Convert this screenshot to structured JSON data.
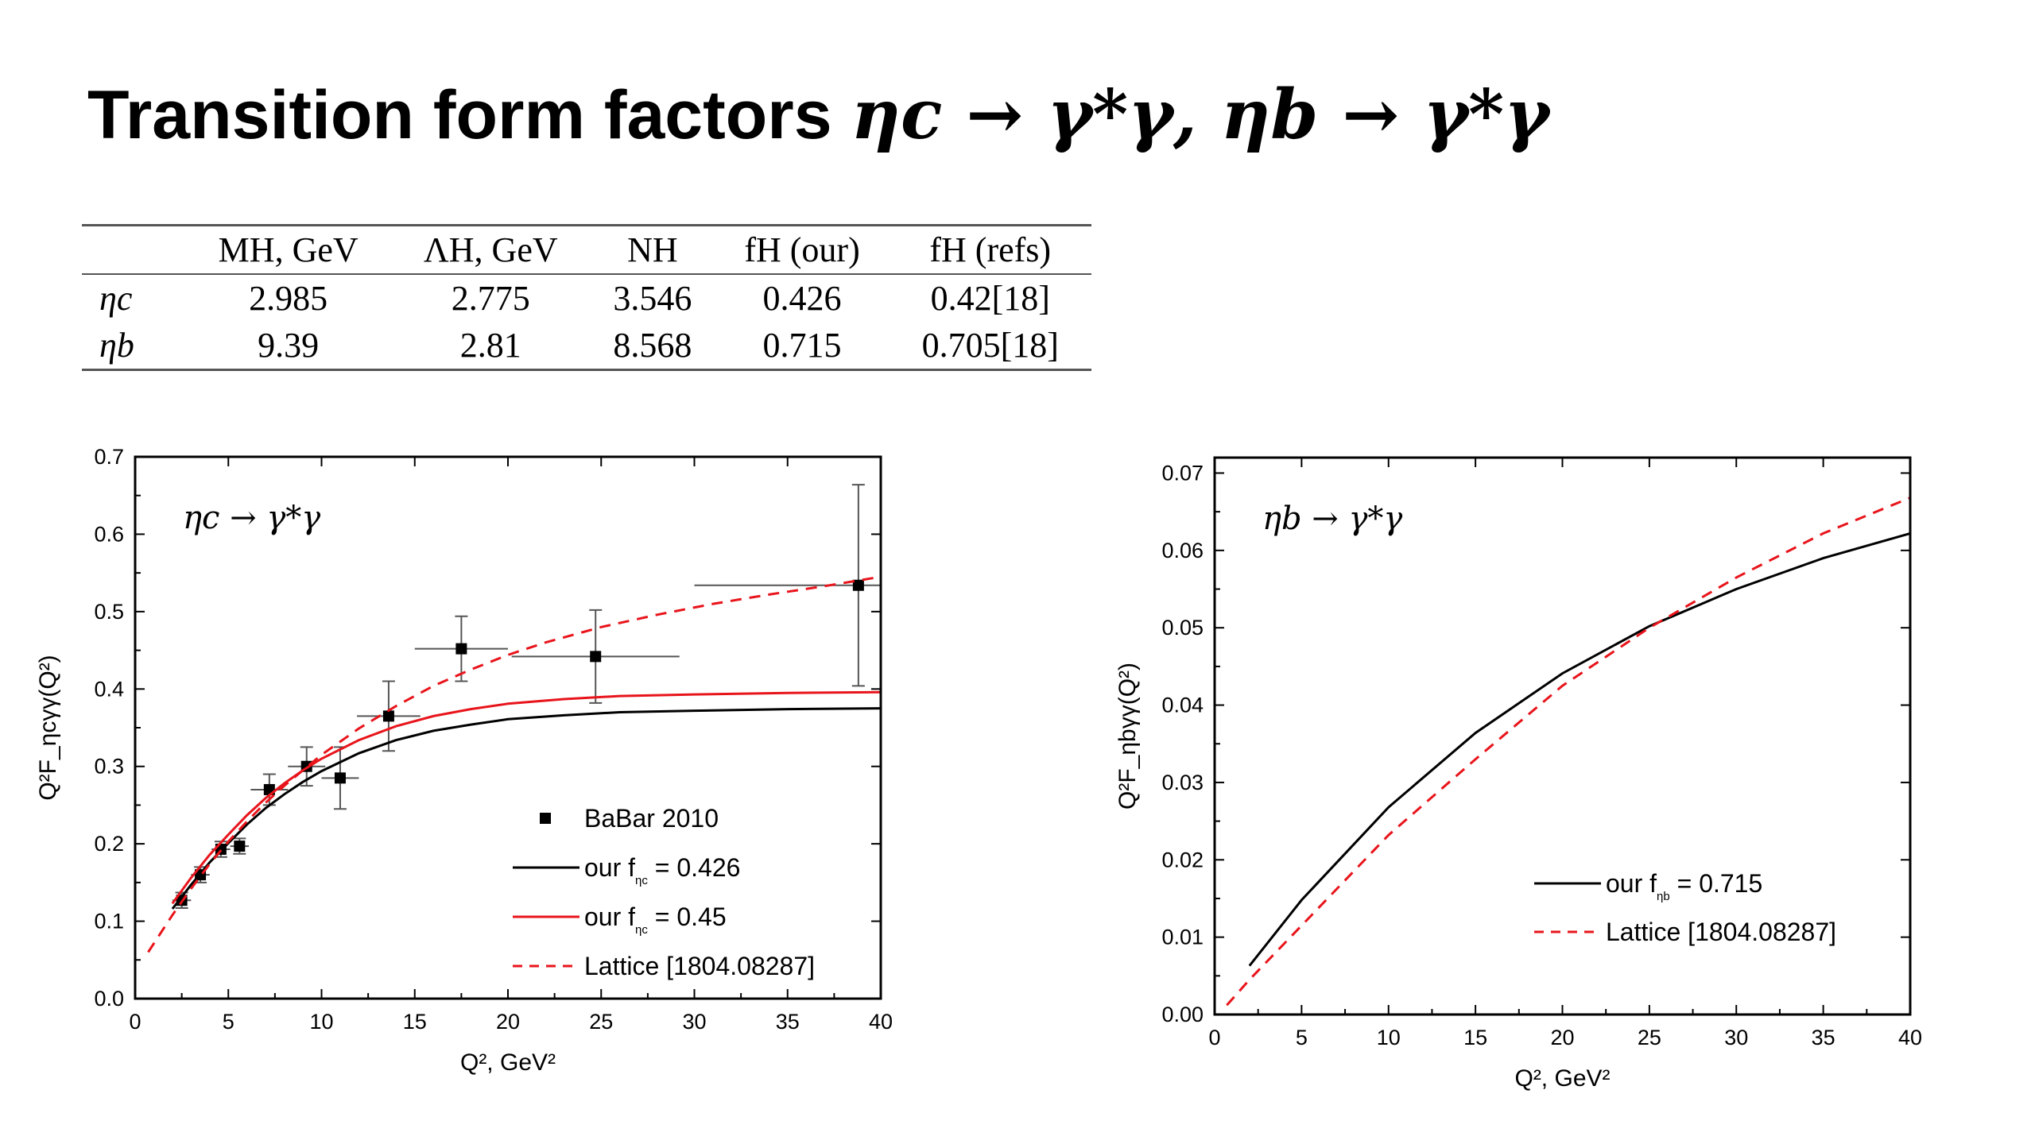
{
  "slide": {
    "title_text": "Transition form factors ",
    "title_formula": "ηc → γ*γ, ηb → γ*γ"
  },
  "table": {
    "headers": [
      "",
      "MH, GeV",
      "ΛH, GeV",
      "NH",
      "fH (our)",
      "fH (refs)"
    ],
    "rows": [
      {
        "label": "ηc",
        "cells": [
          "2.985",
          "2.775",
          "3.546",
          "0.426",
          "0.42[18]"
        ]
      },
      {
        "label": "ηb",
        "cells": [
          "9.39",
          "2.81",
          "8.568",
          "0.715",
          "0.705[18]"
        ]
      }
    ]
  },
  "chart_data": [
    {
      "type": "scatter",
      "id": "eta-c",
      "annotation": "ηc → γ*γ",
      "xlabel": "Q², GeV²",
      "ylabel": "Q²F_ηcγγ(Q²)",
      "xlim": [
        0,
        40
      ],
      "ylim": [
        0,
        0.7
      ],
      "xticks": [
        0,
        5,
        10,
        15,
        20,
        25,
        30,
        35,
        40
      ],
      "yticks": [
        0.0,
        0.1,
        0.2,
        0.3,
        0.4,
        0.5,
        0.6,
        0.7
      ],
      "xtick_labels": [
        "0",
        "5",
        "10",
        "15",
        "20",
        "25",
        "30",
        "35",
        "40"
      ],
      "ytick_labels": [
        "0.0",
        "0.1",
        "0.2",
        "0.3",
        "0.4",
        "0.5",
        "0.6",
        "0.7"
      ],
      "legend_position": "bottom-right",
      "series": [
        {
          "name": "BaBar 2010",
          "kind": "points",
          "color": "#000000",
          "points": [
            {
              "x": 2.5,
              "y": 0.127,
              "xerr": 0.5,
              "yerr": 0.01
            },
            {
              "x": 3.5,
              "y": 0.16,
              "xerr": 0.5,
              "yerr": 0.01
            },
            {
              "x": 4.6,
              "y": 0.193,
              "xerr": 0.5,
              "yerr": 0.01
            },
            {
              "x": 5.6,
              "y": 0.197,
              "xerr": 0.5,
              "yerr": 0.01
            },
            {
              "x": 7.2,
              "y": 0.27,
              "xerr": 1.0,
              "yerr": 0.02
            },
            {
              "x": 9.2,
              "y": 0.3,
              "xerr": 1.0,
              "yerr": 0.025
            },
            {
              "x": 11.0,
              "y": 0.285,
              "xerr": 1.0,
              "yerr": 0.04
            },
            {
              "x": 13.6,
              "y": 0.365,
              "xerr": 1.7,
              "yerr": 0.045
            },
            {
              "x": 17.5,
              "y": 0.452,
              "xerr": 2.5,
              "yerr": 0.042
            },
            {
              "x": 24.7,
              "y": 0.442,
              "xerr": 4.5,
              "yerr": 0.06
            },
            {
              "x": 38.8,
              "y": 0.534,
              "xerr": 8.8,
              "yerr": 0.13
            }
          ]
        },
        {
          "name": "our f = 0.426",
          "legend_label": "our f",
          "legend_sub": "ηc",
          "legend_value": " = 0.426",
          "kind": "line",
          "color": "#000000",
          "dash": "",
          "x": [
            2,
            3,
            4,
            5,
            6,
            7,
            8,
            9,
            10,
            12,
            14,
            16,
            18,
            20,
            23,
            26,
            30,
            35,
            40
          ],
          "y": [
            0.116,
            0.147,
            0.176,
            0.201,
            0.225,
            0.246,
            0.264,
            0.28,
            0.294,
            0.317,
            0.334,
            0.346,
            0.354,
            0.361,
            0.366,
            0.37,
            0.372,
            0.374,
            0.375
          ]
        },
        {
          "name": "our f = 0.45",
          "legend_label": "our f",
          "legend_sub": "ηc",
          "legend_value": " = 0.45",
          "kind": "line",
          "color": "#e8141b",
          "dash": "",
          "x": [
            2,
            3,
            4,
            5,
            6,
            7,
            8,
            9,
            10,
            12,
            14,
            16,
            18,
            20,
            23,
            26,
            30,
            35,
            40
          ],
          "y": [
            0.123,
            0.156,
            0.186,
            0.212,
            0.237,
            0.259,
            0.278,
            0.295,
            0.31,
            0.334,
            0.352,
            0.365,
            0.374,
            0.381,
            0.387,
            0.391,
            0.393,
            0.395,
            0.396
          ]
        },
        {
          "name": "Lattice [1804.08287]",
          "legend_label": "Lattice [1804.08287]",
          "legend_sub": "",
          "legend_value": "",
          "kind": "line",
          "color": "#e8141b",
          "dash": "14,10",
          "x": [
            0.7,
            2,
            3,
            4,
            5,
            6,
            7,
            8,
            10,
            12,
            14,
            16,
            18,
            20,
            22,
            25,
            28,
            31,
            34,
            37,
            40
          ],
          "y": [
            0.06,
            0.108,
            0.142,
            0.174,
            0.203,
            0.229,
            0.253,
            0.275,
            0.315,
            0.349,
            0.378,
            0.404,
            0.425,
            0.444,
            0.46,
            0.48,
            0.496,
            0.51,
            0.522,
            0.533,
            0.545
          ]
        }
      ]
    },
    {
      "type": "line",
      "id": "eta-b",
      "annotation": "ηb → γ*γ",
      "xlabel": "Q², GeV²",
      "ylabel": "Q²F_ηbγγ(Q²)",
      "xlim": [
        0,
        40
      ],
      "ylim": [
        0,
        0.072
      ],
      "xticks": [
        0,
        5,
        10,
        15,
        20,
        25,
        30,
        35,
        40
      ],
      "yticks": [
        0.0,
        0.01,
        0.02,
        0.03,
        0.04,
        0.05,
        0.06,
        0.07
      ],
      "xtick_labels": [
        "0",
        "5",
        "10",
        "15",
        "20",
        "25",
        "30",
        "35",
        "40"
      ],
      "ytick_labels": [
        "0.00",
        "0.01",
        "0.02",
        "0.03",
        "0.04",
        "0.05",
        "0.06",
        "0.07"
      ],
      "legend_position": "bottom-right",
      "series": [
        {
          "name": "our f = 0.715",
          "legend_label": "our f",
          "legend_sub": "ηb",
          "legend_value": " = 0.715",
          "kind": "line",
          "color": "#000000",
          "dash": "",
          "x": [
            2,
            5,
            10,
            15,
            20,
            25,
            30,
            35,
            40
          ],
          "y": [
            0.0063,
            0.0148,
            0.0268,
            0.0364,
            0.0441,
            0.0502,
            0.055,
            0.059,
            0.0622
          ]
        },
        {
          "name": "Lattice [1804.08287]",
          "legend_label": "Lattice [1804.08287]",
          "legend_sub": "",
          "legend_value": "",
          "kind": "line",
          "color": "#e8141b",
          "dash": "14,10",
          "x": [
            0.7,
            2,
            5,
            10,
            15,
            20,
            25,
            30,
            35,
            40
          ],
          "y": [
            0.0012,
            0.0045,
            0.0115,
            0.0232,
            0.033,
            0.0425,
            0.05,
            0.0565,
            0.0622,
            0.0668
          ]
        }
      ]
    }
  ]
}
